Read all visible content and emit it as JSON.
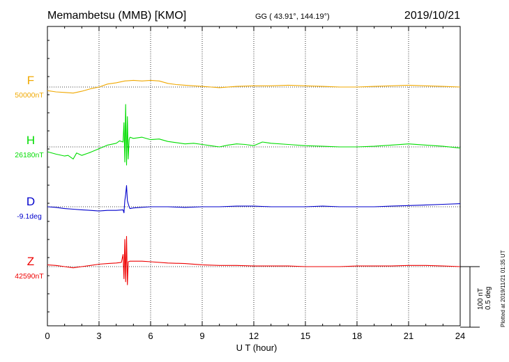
{
  "header": {
    "station": "Memambetsu (MMB)  [KMO]",
    "coords": "GG ( 43.91°, 144.19°)",
    "date": "2019/10/21"
  },
  "scale": {
    "nt": "100 nT",
    "deg": "0.5 deg"
  },
  "plotted": "Plotted at 2019/11/21 01:35 UT",
  "chart_data": {
    "type": "line",
    "xlabel": "U T (hour)",
    "xlim": [
      0,
      24
    ],
    "xticks": [
      "0",
      "3",
      "6",
      "9",
      "12",
      "15",
      "18",
      "21",
      "24"
    ],
    "grid": true,
    "series": [
      {
        "name": "F",
        "baseline": "50000nT",
        "color": "#f0a800",
        "x": [
          0,
          0.5,
          1,
          1.5,
          2,
          2.5,
          3,
          3.5,
          4,
          4.5,
          5,
          5.5,
          6,
          6.5,
          7,
          7.5,
          8,
          8.5,
          9,
          9.5,
          10,
          11,
          12,
          13,
          14,
          15,
          16,
          17,
          18,
          19,
          20,
          21,
          22,
          23,
          24
        ],
        "y": [
          -6,
          -8,
          -9,
          -10,
          -7,
          -3,
          0,
          5,
          7,
          10,
          11,
          10,
          11,
          10,
          6,
          4,
          3,
          2,
          1,
          0,
          -1,
          1,
          2,
          2,
          3,
          2,
          1,
          0,
          0,
          1,
          2,
          3,
          2,
          1,
          0
        ]
      },
      {
        "name": "H",
        "baseline": "26180nT",
        "color": "#00dd00",
        "x": [
          0,
          0.5,
          1,
          1.2,
          1.5,
          1.7,
          2,
          2.5,
          3,
          3.5,
          4,
          4.2,
          4.4,
          4.45,
          4.5,
          4.55,
          4.6,
          4.65,
          4.7,
          4.75,
          4.8,
          5,
          5.5,
          6,
          6.5,
          7,
          7.5,
          8,
          8.5,
          9,
          9.5,
          10,
          10.5,
          11,
          11.5,
          12,
          12.5,
          13,
          14,
          15,
          16,
          17,
          18,
          19,
          20,
          21,
          22,
          23,
          24
        ],
        "y": [
          -8,
          -12,
          -15,
          -14,
          -20,
          -10,
          -14,
          -9,
          -3,
          3,
          6,
          10,
          8,
          40,
          -25,
          70,
          -30,
          50,
          -20,
          12,
          16,
          14,
          16,
          12,
          13,
          9,
          7,
          5,
          6,
          4,
          2,
          0,
          3,
          5,
          4,
          2,
          8,
          6,
          4,
          2,
          1,
          0,
          0,
          1,
          3,
          5,
          3,
          1,
          -2
        ]
      },
      {
        "name": "D",
        "baseline": "-9.1deg",
        "color": "#0000cc",
        "x": [
          0,
          0.5,
          1,
          1.5,
          2,
          2.5,
          3,
          3.5,
          4,
          4.4,
          4.45,
          4.5,
          4.55,
          4.6,
          4.65,
          4.7,
          4.75,
          4.8,
          5,
          6,
          7,
          8,
          9,
          10,
          11,
          12,
          13,
          14,
          15,
          16,
          17,
          18,
          19,
          20,
          21,
          22,
          23,
          24
        ],
        "y": [
          0,
          -1,
          -3,
          -4,
          -5,
          -6,
          -7,
          -6,
          -6,
          -5,
          -10,
          10,
          20,
          35,
          10,
          5,
          0,
          -3,
          -2,
          0,
          0,
          -1,
          0,
          0,
          1,
          1,
          0,
          0,
          0,
          1,
          0,
          0,
          0,
          1,
          2,
          3,
          4,
          5
        ]
      },
      {
        "name": "Z",
        "baseline": "42590nT",
        "color": "#ee0000",
        "x": [
          0,
          0.5,
          1,
          1.5,
          2,
          2.5,
          3,
          3.5,
          4,
          4.3,
          4.4,
          4.45,
          4.5,
          4.55,
          4.6,
          4.65,
          4.7,
          4.8,
          5,
          5.5,
          6,
          7,
          8,
          9,
          10,
          11,
          12,
          13,
          14,
          15,
          16,
          17,
          18,
          19,
          20,
          21,
          22,
          23,
          24
        ],
        "y": [
          3,
          2,
          0,
          -2,
          0,
          2,
          4,
          5,
          6,
          7,
          20,
          -20,
          45,
          -25,
          50,
          -30,
          8,
          9,
          9,
          9,
          8,
          6,
          5,
          3,
          2,
          2,
          1,
          1,
          1,
          0,
          0,
          0,
          1,
          1,
          1,
          2,
          2,
          1,
          0
        ]
      }
    ]
  }
}
